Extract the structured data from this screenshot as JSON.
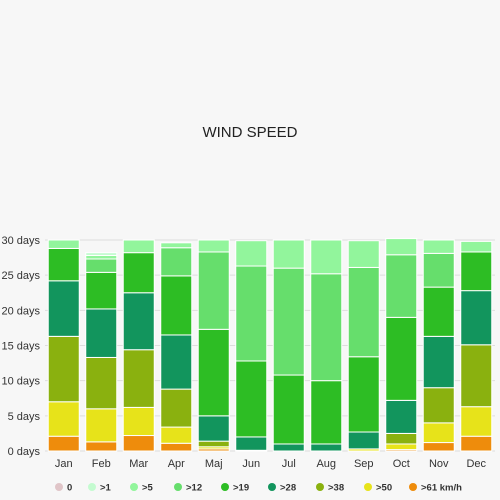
{
  "chart_data": {
    "type": "bar",
    "stacked": true,
    "title": "WIND SPEED",
    "xlabel": "",
    "ylabel": "",
    "ylim": [
      0,
      30
    ],
    "yticks": [
      "0 days",
      "5 days",
      "10 days",
      "15 days",
      "20 days",
      "25 days",
      "30 days"
    ],
    "grid": true,
    "legend_position": "bottom",
    "categories": [
      "Jan",
      "Feb",
      "Mar",
      "Apr",
      "Maj",
      "Jun",
      "Jul",
      "Aug",
      "Sep",
      "Oct",
      "Nov",
      "Dec"
    ],
    "series": [
      {
        "name": ">61 km/h",
        "color": "#ee8c0c",
        "values": [
          2.1,
          1.3,
          2.2,
          1.1,
          0.3,
          0.1,
          0,
          0,
          0,
          0.2,
          1.2,
          2.1
        ]
      },
      {
        "name": ">50",
        "color": "#e7e31a",
        "values": [
          4.9,
          4.7,
          4.0,
          2.3,
          0.3,
          0,
          0,
          0,
          0.3,
          0.8,
          2.8,
          4.2
        ]
      },
      {
        "name": ">38",
        "color": "#8ab10f",
        "values": [
          9.3,
          7.3,
          8.2,
          5.4,
          0.8,
          0,
          0,
          0,
          0,
          1.5,
          5.0,
          8.8
        ]
      },
      {
        "name": ">28",
        "color": "#12955d",
        "values": [
          7.9,
          6.9,
          8.1,
          7.7,
          3.6,
          1.9,
          1.0,
          1.0,
          2.4,
          4.7,
          7.3,
          7.7
        ]
      },
      {
        "name": ">19",
        "color": "#2dbd24",
        "values": [
          4.6,
          5.2,
          5.7,
          8.4,
          12.3,
          10.8,
          9.8,
          9.0,
          10.7,
          11.8,
          7.0,
          5.5
        ]
      },
      {
        "name": ">12",
        "color": "#66de6c",
        "values": [
          0,
          1.9,
          0,
          4.0,
          11.0,
          13.5,
          15.2,
          15.2,
          12.7,
          8.9,
          4.8,
          0
        ]
      },
      {
        "name": ">5",
        "color": "#92f59c",
        "values": [
          1.2,
          0.5,
          1.8,
          0.7,
          1.7,
          3.6,
          4.0,
          4.8,
          3.8,
          2.3,
          1.9,
          1.5
        ]
      },
      {
        "name": ">1",
        "color": "#c4fbd0",
        "values": [
          0,
          0.4,
          0,
          0,
          0,
          0,
          0,
          0,
          0,
          0,
          0,
          0
        ]
      },
      {
        "name": "0",
        "color": "#e0c5c8",
        "values": [
          0,
          0,
          0,
          0,
          0,
          0,
          0,
          0,
          0,
          0,
          0,
          0
        ]
      }
    ],
    "legend": [
      {
        "label": "0",
        "color": "#e0c5c8"
      },
      {
        "label": ">1",
        "color": "#c4fbd0"
      },
      {
        "label": ">5",
        "color": "#92f59c"
      },
      {
        "label": ">12",
        "color": "#66de6c"
      },
      {
        "label": ">19",
        "color": "#2dbd24"
      },
      {
        "label": ">28",
        "color": "#12955d"
      },
      {
        "label": ">38",
        "color": "#8ab10f"
      },
      {
        "label": ">50",
        "color": "#e7e31a"
      },
      {
        "label": ">61 km/h",
        "color": "#ee8c0c"
      }
    ],
    "gridline_color": "#dddddd"
  }
}
